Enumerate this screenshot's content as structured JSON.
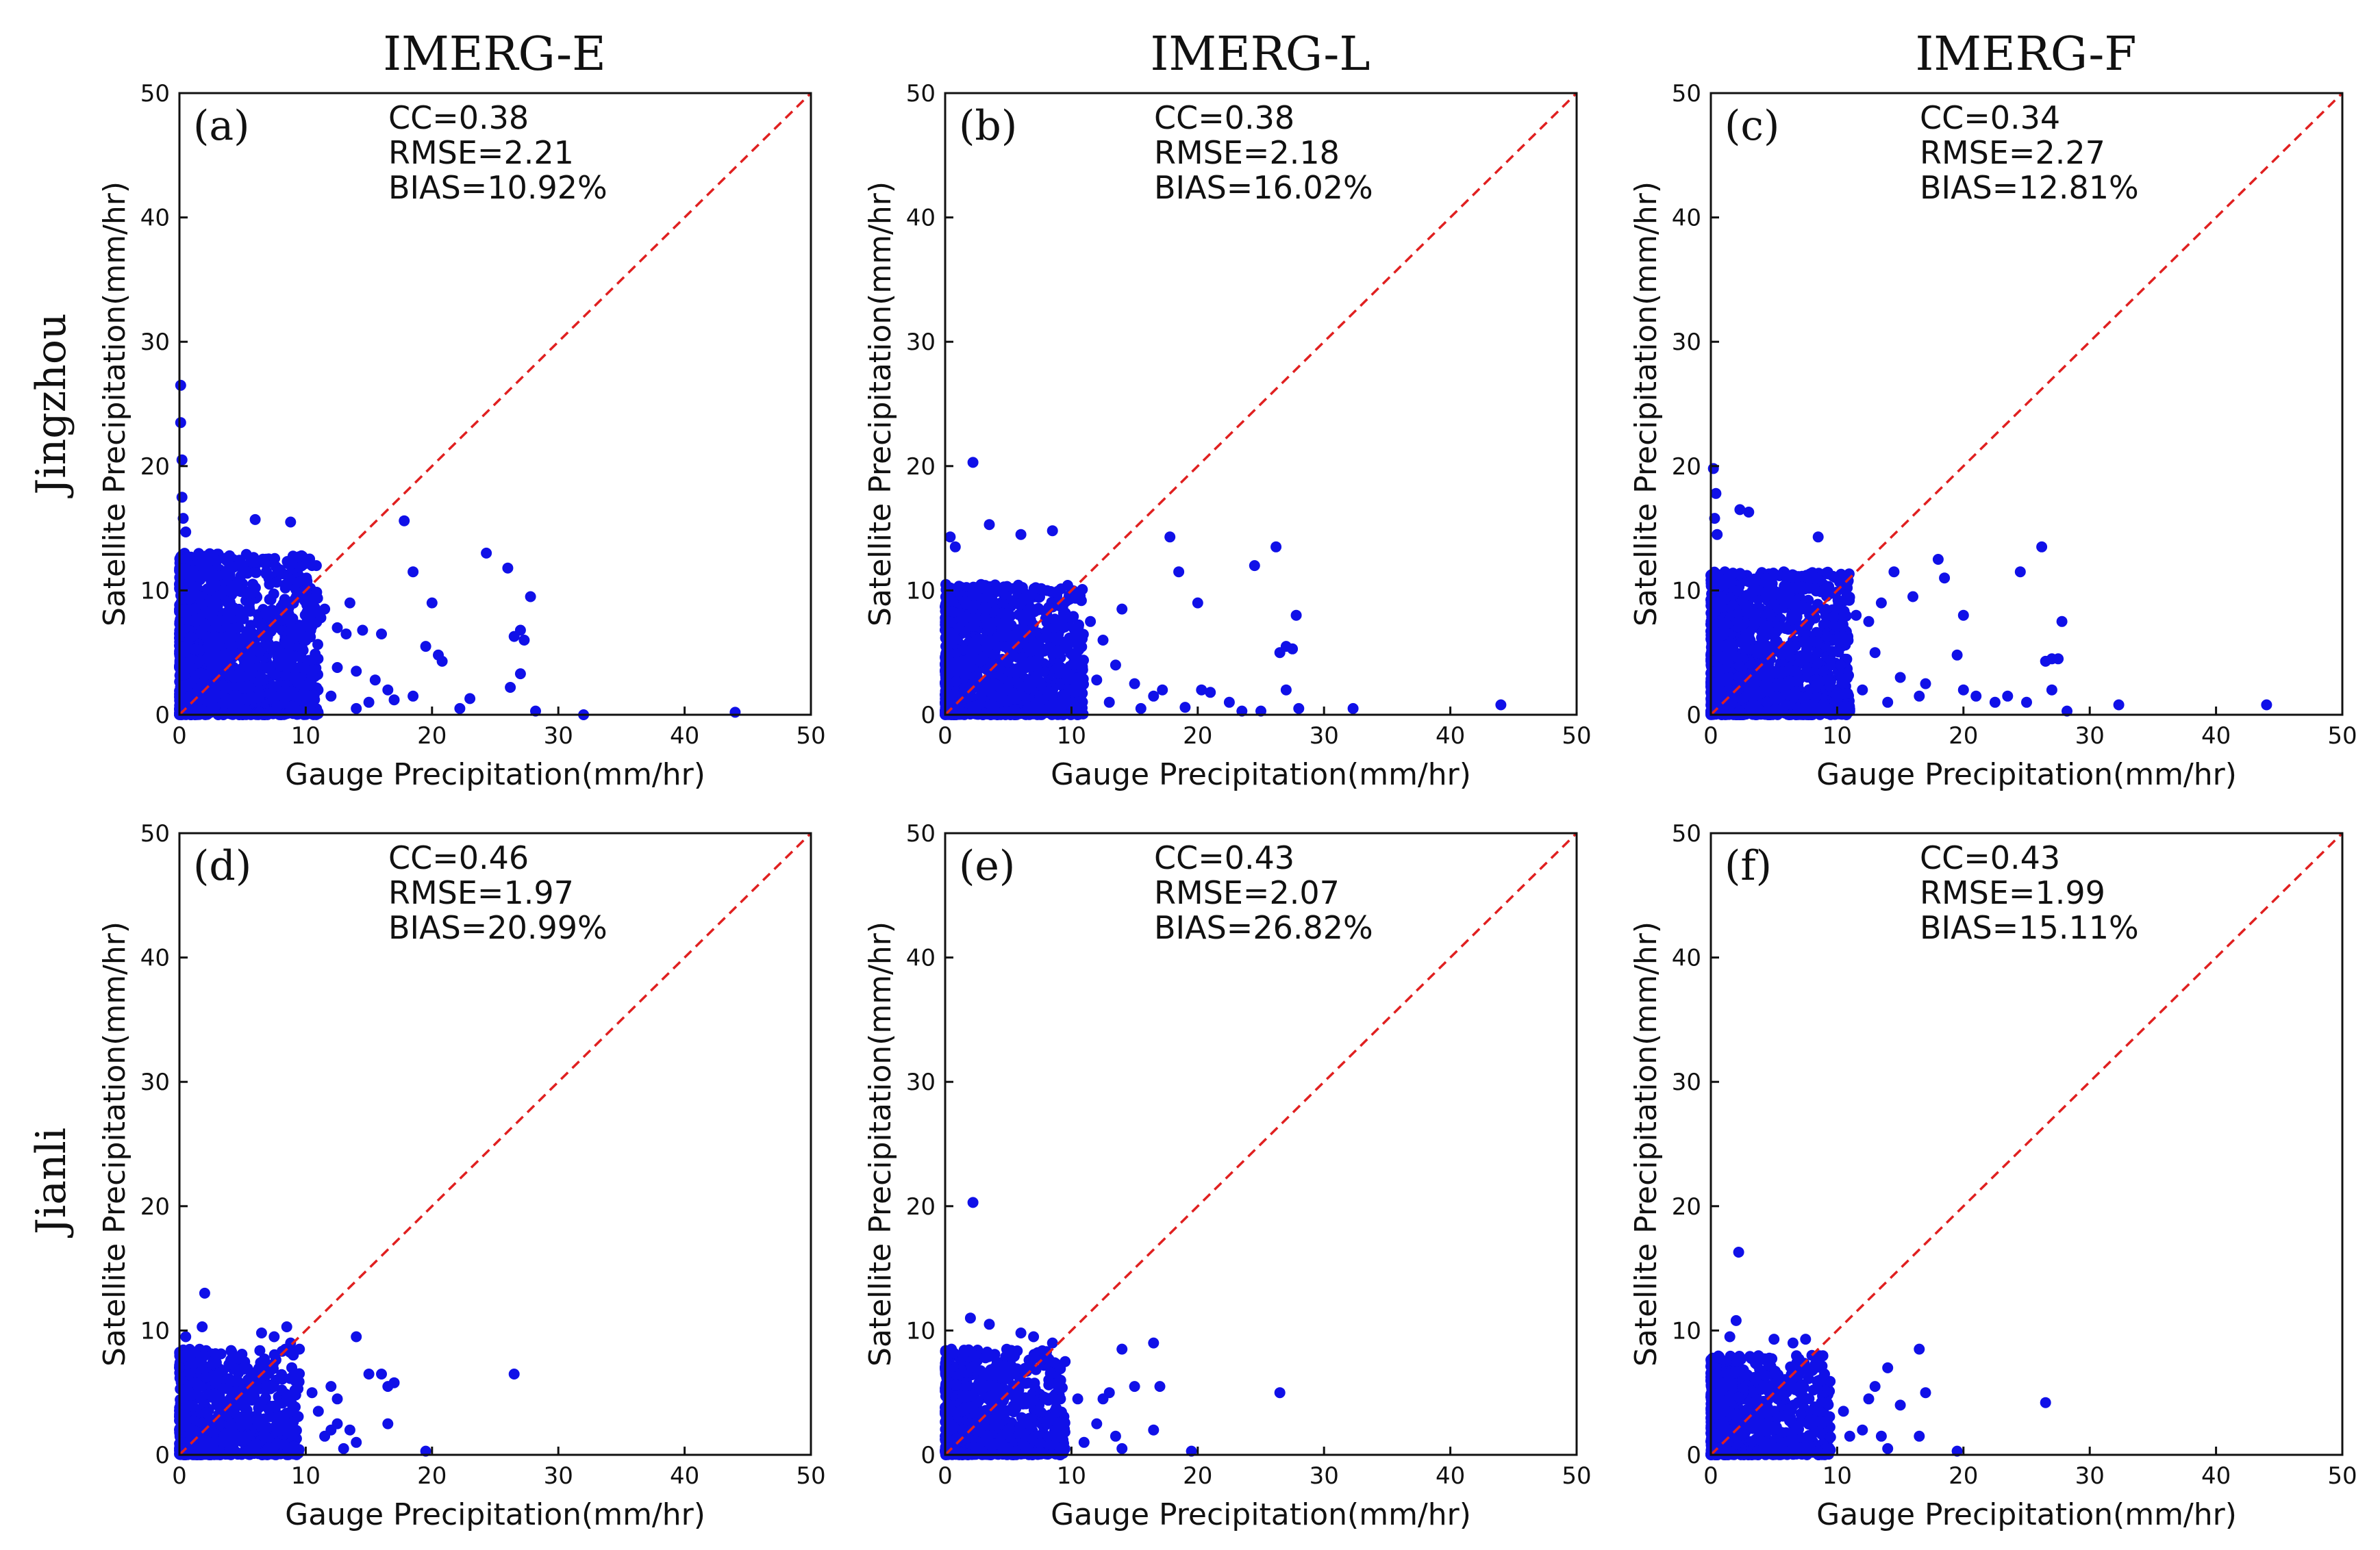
{
  "figure": {
    "column_titles": [
      "IMERG-E",
      "IMERG-L",
      "IMERG-F"
    ],
    "row_labels": [
      "Jingzhou",
      "Jianli"
    ],
    "colors": {
      "points": "#1010e8",
      "diagonal": "#e02020",
      "axes": "#111111"
    }
  },
  "chart_data": [
    {
      "type": "scatter",
      "panel": "(a)",
      "row": "Jingzhou",
      "column": "IMERG-E",
      "xlabel": "Gauge Precipitation(mm/hr)",
      "ylabel": "Satellite Precipitation(mm/hr)",
      "xlim": [
        0,
        50
      ],
      "ylim": [
        0,
        50
      ],
      "xticks": [
        0,
        10,
        20,
        30,
        40,
        50
      ],
      "yticks": [
        0,
        10,
        20,
        30,
        40,
        50
      ],
      "stats": {
        "cc": "CC=0.38",
        "rmse": "RMSE=2.21",
        "bias": "BIAS=10.92%"
      },
      "reference_line": "1:1",
      "cloud": {
        "n": 1500,
        "xmax": 11,
        "ymax": 13,
        "seed": 11
      },
      "points": [
        [
          0.1,
          26.5
        ],
        [
          0.1,
          23.5
        ],
        [
          0.2,
          20.5
        ],
        [
          0.2,
          17.5
        ],
        [
          0.3,
          15.8
        ],
        [
          0.5,
          14.7
        ],
        [
          6.0,
          15.7
        ],
        [
          8.8,
          15.5
        ],
        [
          17.8,
          15.6
        ],
        [
          18.5,
          11.5
        ],
        [
          20.0,
          9.0
        ],
        [
          20.5,
          4.8
        ],
        [
          20.8,
          4.3
        ],
        [
          19.5,
          5.5
        ],
        [
          22.2,
          0.5
        ],
        [
          23.0,
          1.3
        ],
        [
          24.3,
          13.0
        ],
        [
          26.0,
          11.8
        ],
        [
          26.5,
          6.3
        ],
        [
          27.0,
          6.8
        ],
        [
          27.3,
          6.0
        ],
        [
          27.0,
          3.3
        ],
        [
          27.8,
          9.5
        ],
        [
          26.2,
          2.2
        ],
        [
          28.2,
          0.3
        ],
        [
          32.0,
          0.0
        ],
        [
          44.0,
          0.2
        ],
        [
          16.5,
          2.0
        ],
        [
          17.0,
          1.2
        ],
        [
          18.5,
          1.5
        ],
        [
          15.5,
          2.8
        ],
        [
          14.0,
          0.5
        ],
        [
          13.5,
          9.0
        ],
        [
          13.2,
          6.5
        ],
        [
          12.5,
          7.0
        ],
        [
          14.5,
          6.8
        ],
        [
          14.0,
          3.5
        ],
        [
          11.5,
          8.5
        ],
        [
          12.5,
          3.8
        ],
        [
          15.0,
          1.0
        ],
        [
          12.0,
          1.5
        ],
        [
          16.0,
          6.5
        ],
        [
          10.5,
          12.0
        ],
        [
          11.2,
          7.8
        ]
      ]
    },
    {
      "type": "scatter",
      "panel": "(b)",
      "row": "Jingzhou",
      "column": "IMERG-L",
      "xlabel": "Gauge Precipitation(mm/hr)",
      "ylabel": "Satellite Precipitation(mm/hr)",
      "xlim": [
        0,
        50
      ],
      "ylim": [
        0,
        50
      ],
      "xticks": [
        0,
        10,
        20,
        30,
        40,
        50
      ],
      "yticks": [
        0,
        10,
        20,
        30,
        40,
        50
      ],
      "stats": {
        "cc": "CC=0.38",
        "rmse": "RMSE=2.18",
        "bias": "BIAS=16.02%"
      },
      "reference_line": "1:1",
      "cloud": {
        "n": 1400,
        "xmax": 11,
        "ymax": 10.5,
        "seed": 22
      },
      "points": [
        [
          2.2,
          20.3
        ],
        [
          0.4,
          14.3
        ],
        [
          0.8,
          13.5
        ],
        [
          3.5,
          15.3
        ],
        [
          6.0,
          14.5
        ],
        [
          8.5,
          14.8
        ],
        [
          17.8,
          14.3
        ],
        [
          18.5,
          11.5
        ],
        [
          20.0,
          9.0
        ],
        [
          20.3,
          2.0
        ],
        [
          21.0,
          1.8
        ],
        [
          24.5,
          12.0
        ],
        [
          26.2,
          13.5
        ],
        [
          26.5,
          5.0
        ],
        [
          27.0,
          5.5
        ],
        [
          27.5,
          5.3
        ],
        [
          27.8,
          8.0
        ],
        [
          27.0,
          2.0
        ],
        [
          28.0,
          0.5
        ],
        [
          32.3,
          0.5
        ],
        [
          44.0,
          0.8
        ],
        [
          22.5,
          1.0
        ],
        [
          23.5,
          0.3
        ],
        [
          16.5,
          1.5
        ],
        [
          17.2,
          2.0
        ],
        [
          15.0,
          2.5
        ],
        [
          14.0,
          8.5
        ],
        [
          12.5,
          6.0
        ],
        [
          13.5,
          4.0
        ],
        [
          15.5,
          0.5
        ],
        [
          12.0,
          2.8
        ],
        [
          13.0,
          1.0
        ],
        [
          11.5,
          7.5
        ],
        [
          19.0,
          0.6
        ],
        [
          25.0,
          0.3
        ]
      ]
    },
    {
      "type": "scatter",
      "panel": "(c)",
      "row": "Jingzhou",
      "column": "IMERG-F",
      "xlabel": "Gauge Precipitation(mm/hr)",
      "ylabel": "Satellite Precipitation(mm/hr)",
      "xlim": [
        0,
        50
      ],
      "ylim": [
        0,
        50
      ],
      "xticks": [
        0,
        10,
        20,
        30,
        40,
        50
      ],
      "yticks": [
        0,
        10,
        20,
        30,
        40,
        50
      ],
      "stats": {
        "cc": "CC=0.34",
        "rmse": "RMSE=2.27",
        "bias": "BIAS=12.81%"
      },
      "reference_line": "1:1",
      "cloud": {
        "n": 1450,
        "xmax": 11,
        "ymax": 11.5,
        "seed": 33
      },
      "points": [
        [
          0.2,
          19.8
        ],
        [
          0.4,
          17.8
        ],
        [
          0.3,
          15.8
        ],
        [
          0.5,
          14.5
        ],
        [
          2.3,
          16.5
        ],
        [
          3.0,
          16.3
        ],
        [
          8.5,
          14.3
        ],
        [
          14.5,
          11.5
        ],
        [
          16.0,
          9.5
        ],
        [
          18.0,
          12.5
        ],
        [
          18.5,
          11.0
        ],
        [
          20.0,
          8.0
        ],
        [
          19.5,
          4.8
        ],
        [
          20.0,
          2.0
        ],
        [
          24.5,
          11.5
        ],
        [
          26.2,
          13.5
        ],
        [
          26.5,
          4.3
        ],
        [
          27.0,
          4.5
        ],
        [
          27.5,
          4.5
        ],
        [
          27.8,
          7.5
        ],
        [
          27.0,
          2.0
        ],
        [
          28.2,
          0.3
        ],
        [
          32.3,
          0.8
        ],
        [
          44.0,
          0.8
        ],
        [
          22.5,
          1.0
        ],
        [
          23.5,
          1.5
        ],
        [
          16.5,
          1.5
        ],
        [
          17.0,
          2.5
        ],
        [
          15.0,
          3.0
        ],
        [
          13.5,
          9.0
        ],
        [
          12.5,
          7.5
        ],
        [
          13.0,
          5.0
        ],
        [
          14.0,
          1.0
        ],
        [
          12.0,
          2.0
        ],
        [
          11.5,
          8.0
        ],
        [
          25.0,
          1.0
        ],
        [
          21.0,
          1.5
        ]
      ]
    },
    {
      "type": "scatter",
      "panel": "(d)",
      "row": "Jianli",
      "column": "IMERG-E",
      "xlabel": "Gauge Precipitation(mm/hr)",
      "ylabel": "Satellite Precipitation(mm/hr)",
      "xlim": [
        0,
        50
      ],
      "ylim": [
        0,
        50
      ],
      "xticks": [
        0,
        10,
        20,
        30,
        40,
        50
      ],
      "yticks": [
        0,
        10,
        20,
        30,
        40,
        50
      ],
      "stats": {
        "cc": "CC=0.46",
        "rmse": "RMSE=1.97",
        "bias": "BIAS=20.99%"
      },
      "reference_line": "1:1",
      "cloud": {
        "n": 800,
        "xmax": 9.5,
        "ymax": 8.5,
        "seed": 44
      },
      "points": [
        [
          2.0,
          13.0
        ],
        [
          0.5,
          9.5
        ],
        [
          1.8,
          10.3
        ],
        [
          6.5,
          9.8
        ],
        [
          7.5,
          9.5
        ],
        [
          8.5,
          10.3
        ],
        [
          8.8,
          9.0
        ],
        [
          14.0,
          9.5
        ],
        [
          12.0,
          5.5
        ],
        [
          12.5,
          4.5
        ],
        [
          15.0,
          6.5
        ],
        [
          16.0,
          6.5
        ],
        [
          16.5,
          5.5
        ],
        [
          17.0,
          5.8
        ],
        [
          16.5,
          2.5
        ],
        [
          13.5,
          2.0
        ],
        [
          14.0,
          1.0
        ],
        [
          13.0,
          0.5
        ],
        [
          12.5,
          2.5
        ],
        [
          12.0,
          2.0
        ],
        [
          11.5,
          1.5
        ],
        [
          19.5,
          0.3
        ],
        [
          26.5,
          6.5
        ],
        [
          10.5,
          5.0
        ],
        [
          11.0,
          3.5
        ],
        [
          9.5,
          8.5
        ]
      ]
    },
    {
      "type": "scatter",
      "panel": "(e)",
      "row": "Jianli",
      "column": "IMERG-L",
      "xlabel": "Gauge Precipitation(mm/hr)",
      "ylabel": "Satellite Precipitation(mm/hr)",
      "xlim": [
        0,
        50
      ],
      "ylim": [
        0,
        50
      ],
      "xticks": [
        0,
        10,
        20,
        30,
        40,
        50
      ],
      "yticks": [
        0,
        10,
        20,
        30,
        40,
        50
      ],
      "stats": {
        "cc": "CC=0.43",
        "rmse": "RMSE=2.07",
        "bias": "BIAS=26.82%"
      },
      "reference_line": "1:1",
      "cloud": {
        "n": 800,
        "xmax": 9.5,
        "ymax": 8.5,
        "seed": 55
      },
      "points": [
        [
          2.2,
          20.3
        ],
        [
          2.0,
          11.0
        ],
        [
          3.5,
          10.5
        ],
        [
          0.5,
          8.5
        ],
        [
          6.0,
          9.8
        ],
        [
          7.0,
          9.5
        ],
        [
          8.5,
          9.0
        ],
        [
          14.0,
          8.5
        ],
        [
          16.5,
          9.0
        ],
        [
          17.0,
          5.5
        ],
        [
          13.0,
          5.0
        ],
        [
          12.5,
          4.5
        ],
        [
          15.0,
          5.5
        ],
        [
          16.5,
          2.0
        ],
        [
          13.5,
          1.5
        ],
        [
          14.0,
          0.5
        ],
        [
          12.0,
          2.5
        ],
        [
          11.0,
          1.0
        ],
        [
          10.5,
          4.5
        ],
        [
          19.5,
          0.3
        ],
        [
          26.5,
          5.0
        ],
        [
          9.5,
          7.5
        ]
      ]
    },
    {
      "type": "scatter",
      "panel": "(f)",
      "row": "Jianli",
      "column": "IMERG-F",
      "xlabel": "Gauge Precipitation(mm/hr)",
      "ylabel": "Satellite Precipitation(mm/hr)",
      "xlim": [
        0,
        50
      ],
      "ylim": [
        0,
        50
      ],
      "xticks": [
        0,
        10,
        20,
        30,
        40,
        50
      ],
      "yticks": [
        0,
        10,
        20,
        30,
        40,
        50
      ],
      "stats": {
        "cc": "CC=0.43",
        "rmse": "RMSE=1.99",
        "bias": "BIAS=15.11%"
      },
      "reference_line": "1:1",
      "cloud": {
        "n": 800,
        "xmax": 9.5,
        "ymax": 8.0,
        "seed": 66
      },
      "points": [
        [
          2.2,
          16.3
        ],
        [
          2.0,
          10.8
        ],
        [
          1.5,
          9.5
        ],
        [
          5.0,
          9.3
        ],
        [
          6.5,
          9.0
        ],
        [
          7.5,
          9.3
        ],
        [
          8.0,
          8.0
        ],
        [
          14.0,
          7.0
        ],
        [
          16.5,
          8.5
        ],
        [
          17.0,
          5.0
        ],
        [
          13.0,
          5.5
        ],
        [
          12.5,
          4.5
        ],
        [
          15.0,
          4.0
        ],
        [
          16.5,
          1.5
        ],
        [
          13.5,
          1.5
        ],
        [
          14.0,
          0.5
        ],
        [
          12.0,
          2.0
        ],
        [
          11.0,
          1.5
        ],
        [
          10.5,
          3.5
        ],
        [
          19.5,
          0.3
        ],
        [
          26.5,
          4.2
        ],
        [
          9.0,
          6.5
        ]
      ]
    }
  ]
}
